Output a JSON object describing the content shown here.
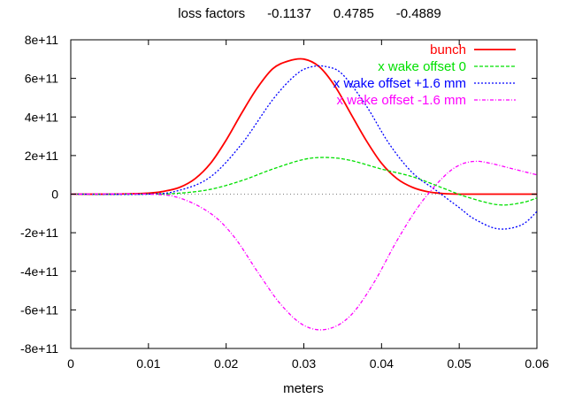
{
  "chart_data": {
    "type": "line",
    "title": "loss factors      -0.1137      0.4785      -0.4889",
    "xlabel": "meters",
    "ylabel": "",
    "xlim": [
      0,
      0.06
    ],
    "ylim": [
      -800000000000.0,
      800000000000.0
    ],
    "grid": false,
    "legend_position": "top-right",
    "x_ticks": [
      {
        "value": 0,
        "label": "0"
      },
      {
        "value": 0.01,
        "label": "0.01"
      },
      {
        "value": 0.02,
        "label": "0.02"
      },
      {
        "value": 0.03,
        "label": "0.03"
      },
      {
        "value": 0.04,
        "label": "0.04"
      },
      {
        "value": 0.05,
        "label": "0.05"
      },
      {
        "value": 0.06,
        "label": "0.06"
      }
    ],
    "y_ticks": [
      {
        "value": 800000000000.0,
        "label": "8e+11"
      },
      {
        "value": 600000000000.0,
        "label": "6e+11"
      },
      {
        "value": 400000000000.0,
        "label": "4e+11"
      },
      {
        "value": 200000000000.0,
        "label": "2e+11"
      },
      {
        "value": 0,
        "label": "0"
      },
      {
        "value": -200000000000.0,
        "label": "-2e+11"
      },
      {
        "value": -400000000000.0,
        "label": "-4e+11"
      },
      {
        "value": -600000000000.0,
        "label": "-6e+11"
      },
      {
        "value": -800000000000.0,
        "label": "-8e+11"
      }
    ],
    "series": [
      {
        "name": "bunch",
        "color": "#ff0000",
        "style": "solid",
        "x": [
          0,
          0.005,
          0.01,
          0.012,
          0.014,
          0.016,
          0.018,
          0.02,
          0.022,
          0.024,
          0.026,
          0.028,
          0.03,
          0.032,
          0.034,
          0.036,
          0.038,
          0.04,
          0.042,
          0.044,
          0.046,
          0.048,
          0.05,
          0.055,
          0.06
        ],
        "y": [
          0,
          0,
          5000000000.0,
          15000000000.0,
          35000000000.0,
          80000000000.0,
          160000000000.0,
          280000000000.0,
          420000000000.0,
          550000000000.0,
          650000000000.0,
          690000000000.0,
          700000000000.0,
          660000000000.0,
          560000000000.0,
          420000000000.0,
          280000000000.0,
          160000000000.0,
          80000000000.0,
          35000000000.0,
          12000000000.0,
          3000000000.0,
          0,
          0,
          0
        ]
      },
      {
        "name": "x wake offset 0",
        "color": "#00e000",
        "style": "dashed",
        "x": [
          0,
          0.01,
          0.014,
          0.018,
          0.022,
          0.026,
          0.03,
          0.033,
          0.036,
          0.04,
          0.044,
          0.048,
          0.051,
          0.055,
          0.058,
          0.06
        ],
        "y": [
          0,
          0,
          5000000000.0,
          25000000000.0,
          70000000000.0,
          130000000000.0,
          180000000000.0,
          190000000000.0,
          175000000000.0,
          130000000000.0,
          90000000000.0,
          30000000000.0,
          -15000000000.0,
          -55000000000.0,
          -45000000000.0,
          -20000000000.0
        ]
      },
      {
        "name": "x wake offset +1.6 mm",
        "color": "#0000ff",
        "style": "dotted",
        "x": [
          0,
          0.01,
          0.014,
          0.018,
          0.022,
          0.026,
          0.029,
          0.031,
          0.033,
          0.035,
          0.038,
          0.041,
          0.044,
          0.047,
          0.05,
          0.052,
          0.055,
          0.058,
          0.06
        ],
        "y": [
          0,
          0,
          20000000000.0,
          90000000000.0,
          260000000000.0,
          490000000000.0,
          620000000000.0,
          660000000000.0,
          660000000000.0,
          620000000000.0,
          460000000000.0,
          260000000000.0,
          110000000000.0,
          20000000000.0,
          -70000000000.0,
          -130000000000.0,
          -180000000000.0,
          -160000000000.0,
          -90000000000.0
        ]
      },
      {
        "name": "x wake offset -1.6 mm",
        "color": "#ff00ff",
        "style": "dash-dot",
        "x": [
          0,
          0.01,
          0.014,
          0.018,
          0.021,
          0.024,
          0.027,
          0.03,
          0.033,
          0.036,
          0.039,
          0.042,
          0.045,
          0.048,
          0.05,
          0.052,
          0.054,
          0.057,
          0.06
        ],
        "y": [
          0,
          0,
          -20000000000.0,
          -100000000000.0,
          -220000000000.0,
          -400000000000.0,
          -570000000000.0,
          -680000000000.0,
          -700000000000.0,
          -630000000000.0,
          -460000000000.0,
          -240000000000.0,
          -50000000000.0,
          90000000000.0,
          150000000000.0,
          170000000000.0,
          160000000000.0,
          130000000000.0,
          100000000000.0
        ]
      }
    ]
  }
}
